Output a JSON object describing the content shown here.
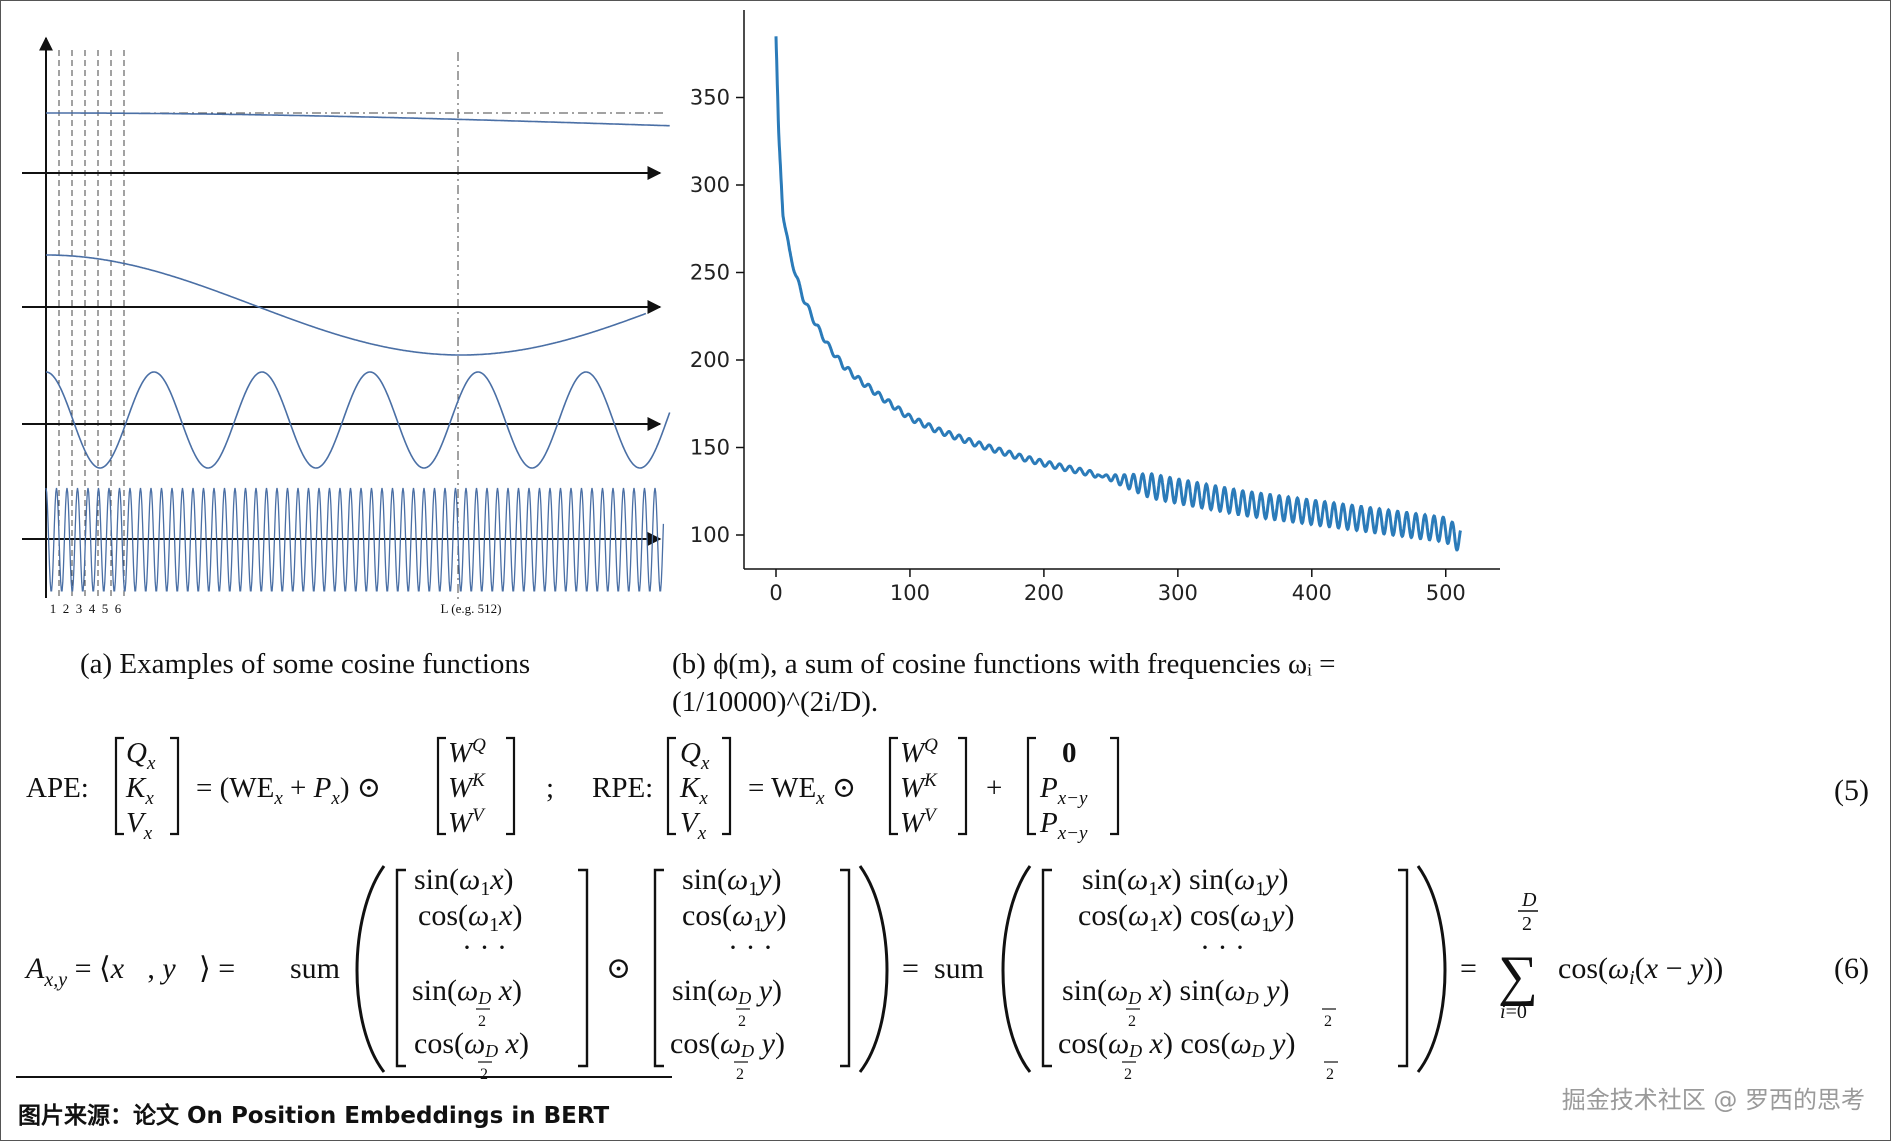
{
  "figure_a": {
    "caption": "(a) Examples of some cosine functions",
    "ticks": [
      "1",
      "2",
      "3",
      "4",
      "5",
      "6"
    ],
    "l_label": "L (e.g. 512)"
  },
  "figure_b": {
    "caption_line1": "(b) ϕ(m), a sum of cosine functions with frequencies ωᵢ =",
    "caption_line2": "(1/10000)^(2i/D)."
  },
  "chart_data": {
    "type": "line",
    "title": "",
    "xlabel": "",
    "ylabel": "",
    "xlim": [
      -25,
      535
    ],
    "ylim": [
      80,
      390
    ],
    "xticks": [
      0,
      100,
      200,
      300,
      400,
      500
    ],
    "yticks": [
      100,
      150,
      200,
      250,
      300,
      350
    ],
    "series": [
      {
        "x": [
          0,
          2,
          5,
          10,
          15,
          20,
          30,
          40,
          50,
          60,
          80,
          100,
          120,
          150,
          180,
          200,
          230,
          260,
          300,
          350,
          400,
          450,
          500,
          511
        ],
        "y": [
          385,
          330,
          285,
          262,
          248,
          236,
          220,
          207,
          197,
          190,
          178,
          167,
          160,
          152,
          145,
          141,
          136,
          131,
          125,
          118,
          113,
          108,
          103,
          97
        ]
      }
    ],
    "grid": false,
    "color": "#2b7bb9"
  },
  "equations": {
    "eq5_number": "(5)",
    "eq6_number": "(6)",
    "ape_label": "APE:",
    "rpe_label": "RPE:",
    "sum_word": "sum"
  },
  "source": "图片来源：论文 On Position Embeddings in BERT",
  "watermark": "掘金技术社区 @ 罗西的思考"
}
